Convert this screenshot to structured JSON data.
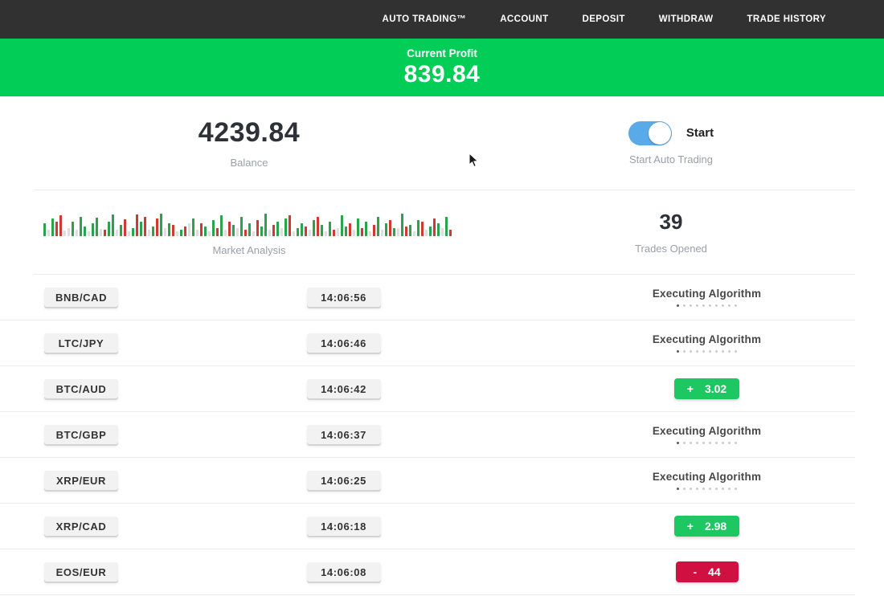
{
  "nav": {
    "items": [
      {
        "label": "AUTO TRADING™"
      },
      {
        "label": "ACCOUNT"
      },
      {
        "label": "DEPOSIT"
      },
      {
        "label": "WITHDRAW"
      },
      {
        "label": "TRADE HISTORY"
      }
    ]
  },
  "profit_banner": {
    "label": "Current Profit",
    "value": "839.84"
  },
  "account": {
    "balance": "4239.84",
    "balance_label": "Balance",
    "toggle_label": "Start",
    "toggle_caption": "Start Auto Trading",
    "toggle_on": true
  },
  "market": {
    "label": "Market Analysis",
    "trades_opened": "39",
    "trades_opened_label": "Trades Opened",
    "progress_dots": 10,
    "bars": [
      "g16",
      "l8",
      "g22",
      "r18",
      "r26",
      "l7",
      "l10",
      "g18",
      "l8",
      "g24",
      "g12",
      "l6",
      "g16",
      "g23",
      "l9",
      "r8",
      "g18",
      "g27",
      "l8",
      "g14",
      "r21",
      "l6",
      "g10",
      "r27",
      "g18",
      "r24",
      "l8",
      "g12",
      "r22",
      "g28",
      "l10",
      "g16",
      "r14",
      "l6",
      "g8",
      "r12",
      "l16",
      "g22",
      "l8",
      "r16",
      "g12",
      "l6",
      "g20",
      "r10",
      "g26",
      "l8",
      "r18",
      "g14",
      "l10",
      "g24",
      "r8",
      "g16",
      "l6",
      "r20",
      "g12",
      "g28",
      "l8",
      "r14",
      "g18",
      "l10",
      "g22",
      "r26",
      "l6",
      "g10",
      "g16",
      "r12",
      "l8",
      "g20",
      "r24",
      "g14",
      "l6",
      "g18",
      "r8",
      "l10",
      "g26",
      "g12",
      "r16",
      "l8",
      "g22",
      "r10",
      "g18",
      "l6",
      "r14",
      "g24",
      "l8",
      "g16",
      "r20",
      "g10",
      "l10",
      "g28",
      "r12",
      "g14",
      "l6",
      "g20",
      "r18",
      "l8",
      "g12",
      "r22",
      "g16",
      "l10",
      "g24",
      "r8"
    ]
  },
  "trades": [
    {
      "pair": "BNB/CAD",
      "time": "14:06:56",
      "status": "executing",
      "status_label": "Executing Algorithm"
    },
    {
      "pair": "LTC/JPY",
      "time": "14:06:46",
      "status": "executing",
      "status_label": "Executing Algorithm"
    },
    {
      "pair": "BTC/AUD",
      "time": "14:06:42",
      "status": "profit",
      "sign": "+",
      "amount": "3.02"
    },
    {
      "pair": "BTC/GBP",
      "time": "14:06:37",
      "status": "executing",
      "status_label": "Executing Algorithm"
    },
    {
      "pair": "XRP/EUR",
      "time": "14:06:25",
      "status": "executing",
      "status_label": "Executing Algorithm"
    },
    {
      "pair": "XRP/CAD",
      "time": "14:06:18",
      "status": "profit",
      "sign": "+",
      "amount": "2.98"
    },
    {
      "pair": "EOS/EUR",
      "time": "14:06:08",
      "status": "loss",
      "sign": "-",
      "amount": "44"
    }
  ],
  "colors": {
    "nav_bg": "#313131",
    "banner_green": "#02cd57",
    "profit_green": "#1dc761",
    "loss_red": "#d11042",
    "toggle_blue": "#58abe8",
    "bar_green": "#2ba24c",
    "bar_red": "#ce3a32"
  }
}
